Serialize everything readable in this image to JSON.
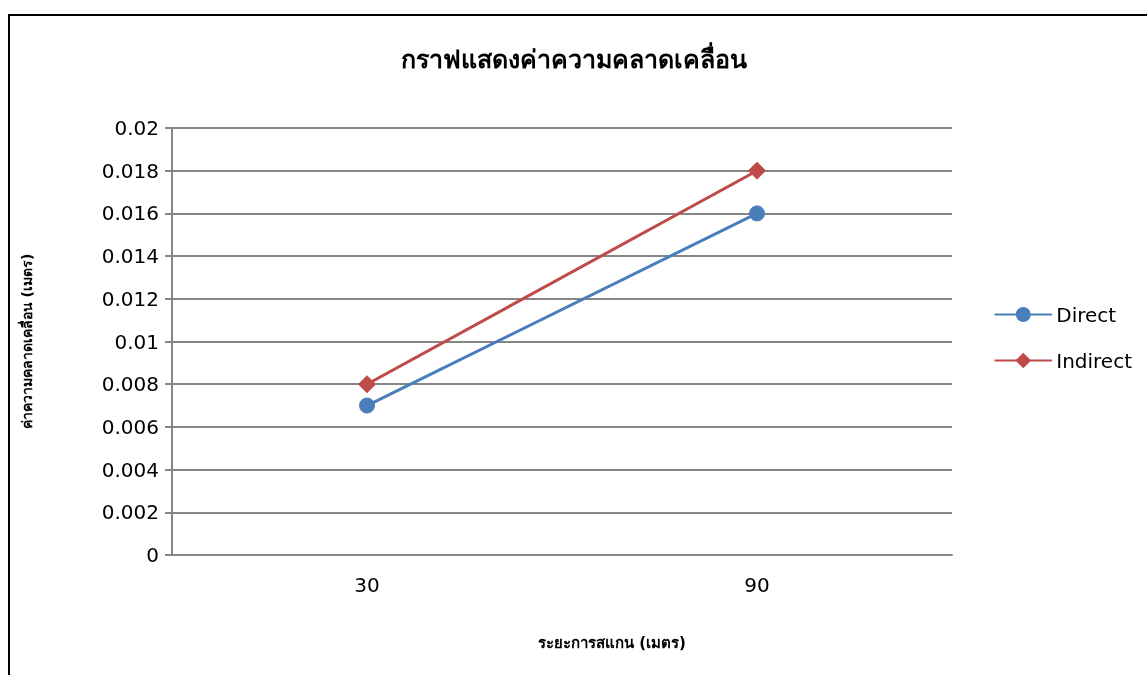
{
  "chart_data": {
    "type": "line",
    "title": "กราฟแสดงค่าความคลาดเคลื่อน",
    "xlabel": "ระยะการสแกน (เมตร)",
    "ylabel": "ค่าความคลาดเคลื่อน (เมตร)",
    "categories": [
      "30",
      "90"
    ],
    "series": [
      {
        "name": "Direct",
        "color": "#4a7ebb",
        "values": [
          0.007,
          0.016
        ],
        "marker": "circle"
      },
      {
        "name": "Indirect",
        "color": "#be4b48",
        "values": [
          0.008,
          0.018
        ],
        "marker": "diamond"
      }
    ],
    "ylim": [
      0,
      0.02
    ],
    "yticks": [
      0,
      0.002,
      0.004,
      0.006,
      0.008,
      0.01,
      0.012,
      0.014,
      0.016,
      0.018,
      0.02
    ],
    "grid": "y",
    "legend": "right",
    "line_style": "solid"
  }
}
